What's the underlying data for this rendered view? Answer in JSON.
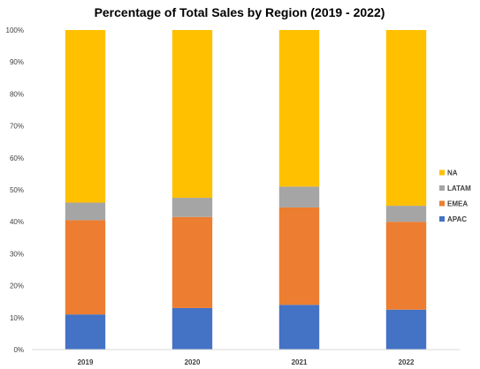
{
  "chart_data": {
    "type": "bar",
    "stacked": true,
    "title": "Percentage of Total Sales by Region (2019 - 2022)",
    "xlabel": "",
    "ylabel": "",
    "categories": [
      "2019",
      "2020",
      "2021",
      "2022"
    ],
    "ylim": [
      0,
      100
    ],
    "yticks": [
      "0%",
      "10%",
      "20%",
      "30%",
      "40%",
      "50%",
      "60%",
      "70%",
      "80%",
      "90%",
      "100%"
    ],
    "grid": false,
    "legend_position": "right",
    "series": [
      {
        "name": "APAC",
        "color": "#4472C4",
        "values": [
          11,
          13,
          14,
          12.5
        ]
      },
      {
        "name": "EMEA",
        "color": "#ED7D31",
        "values": [
          29.5,
          28.5,
          30.5,
          27.5
        ]
      },
      {
        "name": "LATAM",
        "color": "#A5A5A5",
        "values": [
          5.5,
          6,
          6.5,
          5
        ]
      },
      {
        "name": "NA",
        "color": "#FFC000",
        "values": [
          54,
          52.5,
          49,
          55
        ]
      }
    ]
  }
}
